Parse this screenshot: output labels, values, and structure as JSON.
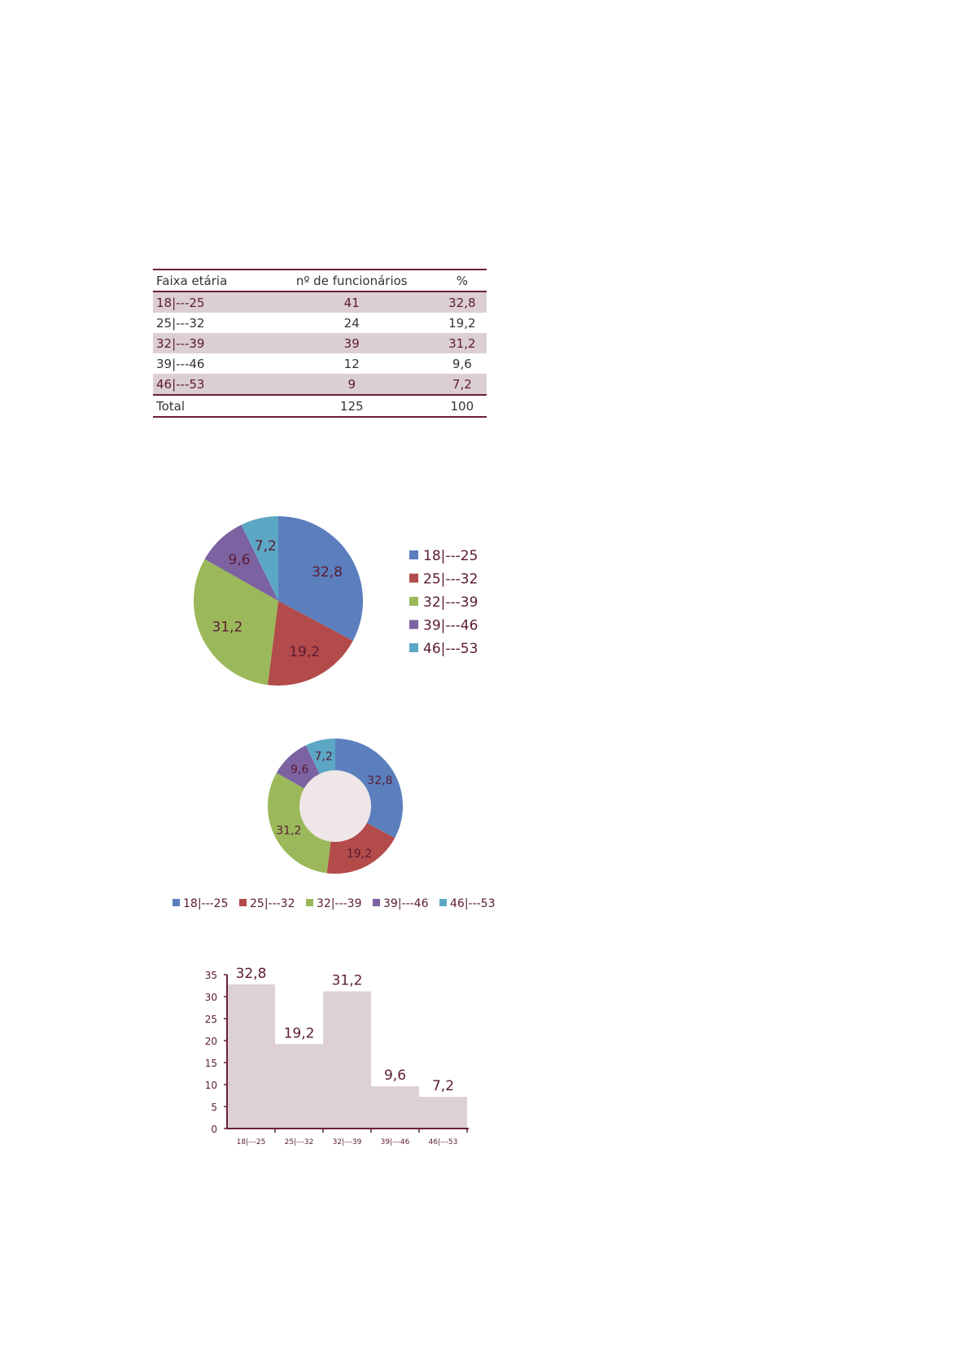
{
  "table": {
    "headers": [
      "Faixa etária",
      "nº de funcionários",
      "%"
    ],
    "rows": [
      [
        "18|---25",
        "41",
        "32,8"
      ],
      [
        "25|---32",
        "24",
        "19,2"
      ],
      [
        "32|---39",
        "39",
        "31,2"
      ],
      [
        "39|---46",
        "12",
        "9,6"
      ],
      [
        "46|---53",
        "9",
        "7,2"
      ]
    ],
    "total": [
      "Total",
      "125",
      "100"
    ]
  },
  "chart_data": [
    {
      "type": "pie",
      "categories": [
        "18|---25",
        "25|---32",
        "32|---39",
        "39|---46",
        "46|---53"
      ],
      "values": [
        32.8,
        19.2,
        31.2,
        9.6,
        7.2
      ],
      "labels": [
        "32,8",
        "19,2",
        "31,2",
        "9,6",
        "7,2"
      ],
      "colors": [
        "#5b7fbd",
        "#b24b4a",
        "#9bb95a",
        "#7c62a0",
        "#5ba7c4"
      ],
      "legend": "right"
    },
    {
      "type": "donut",
      "categories": [
        "18|---25",
        "25|---32",
        "32|---39",
        "39|---46",
        "46|---53"
      ],
      "values": [
        32.8,
        19.2,
        31.2,
        9.6,
        7.2
      ],
      "labels": [
        "32,8",
        "19,2",
        "31,2",
        "9,6",
        "7,2"
      ],
      "colors": [
        "#5b7fbd",
        "#b24b4a",
        "#9bb95a",
        "#7c62a0",
        "#5ba7c4"
      ],
      "legend": "bottom"
    },
    {
      "type": "bar",
      "subtype": "histogram",
      "categories": [
        "18|---25",
        "25|---32",
        "32|---39",
        "39|---46",
        "46|---53"
      ],
      "values": [
        32.8,
        19.2,
        31.2,
        9.6,
        7.2
      ],
      "labels": [
        "32,8",
        "19,2",
        "31,2",
        "9,6",
        "7,2"
      ],
      "ylim": [
        0,
        35
      ],
      "yticks": [
        0,
        5,
        10,
        15,
        20,
        25,
        30,
        35
      ],
      "bar_color": "#ddd1d3",
      "axis_color": "#6b1f3e",
      "grid": false
    }
  ]
}
